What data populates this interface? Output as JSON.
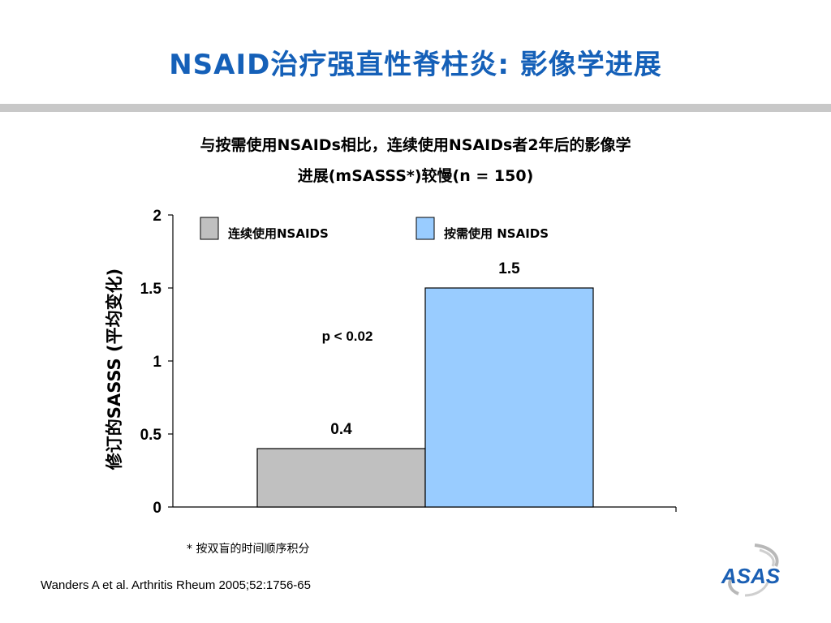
{
  "slide": {
    "title": "NSAID治疗强直性脊柱炎: 影像学进展",
    "subtitle_line1": "与按需使用NSAIDs相比，连续使用NSAIDs者2年后的影像学",
    "subtitle_line2": "进展(mSASSS*)较慢(n = 150)",
    "footnote": "* 按双盲的时间顺序积分",
    "citation": "Wanders A et al. Arthritis Rheum 2005;52:1756-65",
    "logo_text": "ASAS"
  },
  "chart_data": {
    "type": "bar",
    "title": "",
    "xlabel": "",
    "ylabel": "修订的SASSS (平均变化)",
    "ylim": [
      0,
      2
    ],
    "yticks": [
      0,
      0.5,
      1,
      1.5,
      2
    ],
    "ytick_labels": [
      "0",
      "0.5",
      "1",
      "1.5",
      "2"
    ],
    "grid": false,
    "legend_position": "top",
    "series": [
      {
        "name": "连续使用NSAIDS",
        "value": 0.4,
        "label": "0.4",
        "color": "#c0c0c0"
      },
      {
        "name": "按需使用 NSAIDS",
        "value": 1.5,
        "label": "1.5",
        "color": "#99ccff"
      }
    ],
    "annotation": "p < 0.02"
  }
}
